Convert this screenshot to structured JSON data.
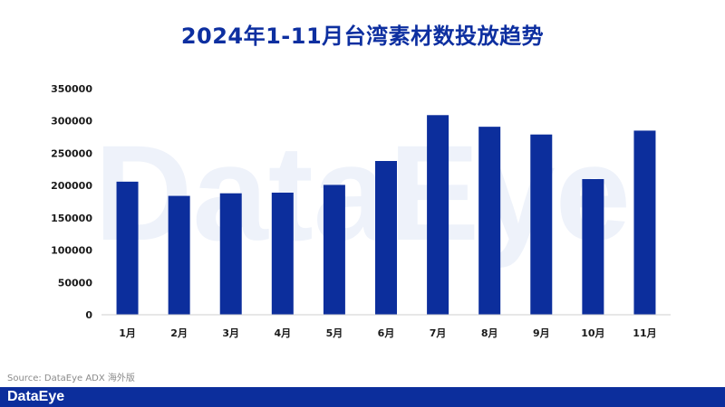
{
  "chart_data": {
    "type": "bar",
    "title": "2024年1-11月台湾素材数投放趋势",
    "categories": [
      "1月",
      "2月",
      "3月",
      "4月",
      "5月",
      "6月",
      "7月",
      "8月",
      "9月",
      "10月",
      "11月"
    ],
    "values": [
      206000,
      184000,
      188000,
      189000,
      201000,
      238000,
      309000,
      291000,
      279000,
      210000,
      285000
    ],
    "ylim": [
      0,
      350000
    ],
    "yticks": [
      "0",
      "50000",
      "100000",
      "150000",
      "200000",
      "250000",
      "300000",
      "350000"
    ],
    "grid": false,
    "bar_color": "#0c2e9c"
  },
  "watermark": "DataEye",
  "source": "Source: DataEye ADX 海外版",
  "footer": {
    "logo": "DataEye",
    "color": "#0c2e9c"
  }
}
